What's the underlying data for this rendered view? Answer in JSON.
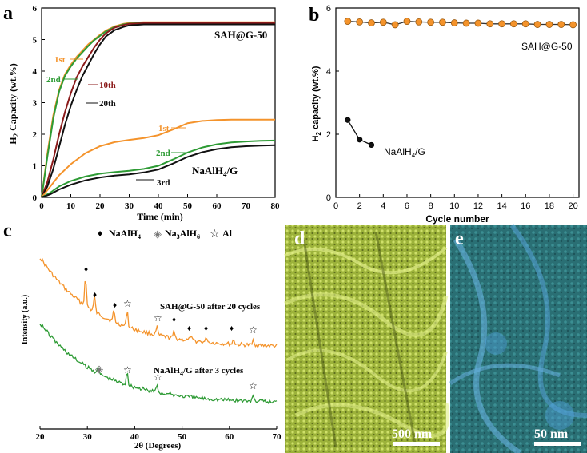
{
  "chart_data": [
    {
      "panel": "a",
      "type": "line",
      "xlabel": "Time (min)",
      "ylabel": "H2 Capacity (wt.%)",
      "xlim": [
        0,
        80
      ],
      "ylim": [
        0,
        6
      ],
      "xticks": [
        0,
        10,
        20,
        30,
        40,
        50,
        60,
        70,
        80
      ],
      "yticks": [
        0,
        1,
        2,
        3,
        4,
        5,
        6
      ],
      "series": [
        {
          "name": "SAH@G-50 1st",
          "color": "#F4932B",
          "x": [
            0,
            2,
            4,
            6,
            8,
            10,
            12,
            14,
            16,
            18,
            20,
            22,
            25,
            28,
            30,
            35,
            40,
            50,
            60,
            70,
            80
          ],
          "y": [
            0,
            1.4,
            2.6,
            3.4,
            3.9,
            4.2,
            4.45,
            4.65,
            4.85,
            5.0,
            5.15,
            5.28,
            5.42,
            5.5,
            5.53,
            5.55,
            5.55,
            5.55,
            5.55,
            5.55,
            5.55
          ]
        },
        {
          "name": "SAH@G-50 2nd",
          "color": "#2E9B35",
          "x": [
            0,
            2,
            4,
            6,
            8,
            10,
            12,
            14,
            16,
            18,
            20,
            22,
            25,
            28,
            30,
            35,
            40,
            50,
            60,
            70,
            80
          ],
          "y": [
            0,
            1.3,
            2.5,
            3.35,
            3.85,
            4.15,
            4.4,
            4.6,
            4.8,
            4.98,
            5.12,
            5.26,
            5.4,
            5.48,
            5.51,
            5.53,
            5.53,
            5.53,
            5.53,
            5.53,
            5.53
          ]
        },
        {
          "name": "SAH@G-50 10th",
          "color": "#8B1A1A",
          "x": [
            0,
            2,
            4,
            6,
            8,
            10,
            12,
            14,
            16,
            18,
            20,
            22,
            25,
            28,
            30,
            35,
            40,
            50,
            60,
            70,
            80
          ],
          "y": [
            0,
            0.5,
            1.2,
            2.0,
            2.7,
            3.3,
            3.8,
            4.15,
            4.45,
            4.75,
            5.0,
            5.2,
            5.38,
            5.46,
            5.5,
            5.52,
            5.52,
            5.52,
            5.52,
            5.52,
            5.52
          ]
        },
        {
          "name": "SAH@G-50 20th",
          "color": "#111111",
          "x": [
            0,
            2,
            4,
            6,
            8,
            10,
            12,
            14,
            16,
            18,
            20,
            22,
            25,
            28,
            30,
            35,
            40,
            50,
            60,
            70,
            80
          ],
          "y": [
            0,
            0.35,
            0.9,
            1.6,
            2.3,
            2.9,
            3.4,
            3.85,
            4.2,
            4.55,
            4.85,
            5.1,
            5.3,
            5.4,
            5.45,
            5.48,
            5.48,
            5.48,
            5.48,
            5.48,
            5.48
          ]
        },
        {
          "name": "NaAlH4/G 1st",
          "color": "#F4932B",
          "x": [
            0,
            3,
            6,
            10,
            15,
            20,
            25,
            30,
            35,
            40,
            45,
            50,
            55,
            60,
            65,
            70,
            75,
            80
          ],
          "y": [
            0,
            0.35,
            0.7,
            1.05,
            1.4,
            1.62,
            1.75,
            1.82,
            1.88,
            1.97,
            2.15,
            2.35,
            2.42,
            2.45,
            2.46,
            2.46,
            2.46,
            2.46
          ]
        },
        {
          "name": "NaAlH4/G 2nd",
          "color": "#2E9B35",
          "x": [
            0,
            3,
            6,
            10,
            15,
            20,
            25,
            30,
            35,
            40,
            45,
            50,
            55,
            60,
            65,
            70,
            75,
            80
          ],
          "y": [
            0,
            0.15,
            0.35,
            0.52,
            0.66,
            0.75,
            0.8,
            0.84,
            0.9,
            1.0,
            1.2,
            1.42,
            1.58,
            1.68,
            1.74,
            1.77,
            1.79,
            1.8
          ]
        },
        {
          "name": "NaAlH4/G 3rd",
          "color": "#111111",
          "x": [
            0,
            3,
            6,
            10,
            15,
            20,
            25,
            30,
            35,
            40,
            45,
            50,
            55,
            60,
            65,
            70,
            75,
            80
          ],
          "y": [
            0,
            0.1,
            0.25,
            0.4,
            0.54,
            0.63,
            0.69,
            0.73,
            0.79,
            0.88,
            1.07,
            1.28,
            1.43,
            1.53,
            1.59,
            1.62,
            1.64,
            1.65
          ]
        }
      ],
      "labels": {
        "sah": "SAH@G-50",
        "nah_main": "NaAlH",
        "nah_sub": "4",
        "nah_tail": "/G",
        "c1": "1st",
        "c2": "2nd",
        "c10": "10th",
        "c20": "20th",
        "n1": "1st",
        "n2": "2nd",
        "n3": "3rd"
      }
    },
    {
      "panel": "b",
      "type": "line",
      "xlabel": "Cycle number",
      "ylabel": "H2 capacity (wt.%)",
      "xlim": [
        0,
        20.5
      ],
      "ylim": [
        0,
        6
      ],
      "xticks": [
        0,
        2,
        4,
        6,
        8,
        10,
        12,
        14,
        16,
        18,
        20
      ],
      "yticks": [
        0,
        2,
        4,
        6
      ],
      "series": [
        {
          "name": "SAH@G-50",
          "color": "#F4932B",
          "x": [
            1,
            2,
            3,
            4,
            5,
            6,
            7,
            8,
            9,
            10,
            11,
            12,
            13,
            14,
            15,
            16,
            17,
            18,
            19,
            20
          ],
          "y": [
            5.58,
            5.56,
            5.53,
            5.55,
            5.47,
            5.58,
            5.56,
            5.55,
            5.55,
            5.53,
            5.52,
            5.52,
            5.5,
            5.5,
            5.5,
            5.5,
            5.48,
            5.48,
            5.48,
            5.47
          ]
        },
        {
          "name": "NaAlH4/G",
          "color": "#111111",
          "x": [
            1,
            2,
            3
          ],
          "y": [
            2.45,
            1.83,
            1.66
          ]
        }
      ],
      "labels": {
        "sah": "SAH@G-50",
        "nah_main": "NaAlH",
        "nah_sub": "4",
        "nah_tail": "/G"
      }
    },
    {
      "panel": "c",
      "type": "line",
      "xlabel": "2θ (Degrees)",
      "ylabel": "Intensity (a.u.)",
      "xlim": [
        20,
        70
      ],
      "xticks": [
        20,
        30,
        40,
        50,
        60,
        70
      ],
      "legend": {
        "naalh4_main": "NaAlH",
        "naalh4_sub": "4",
        "na3_main": "Na",
        "na3_sub1": "3",
        "na3_mid": "AlH",
        "na3_sub2": "6",
        "al": "Al",
        "diamond": "♦",
        "gray_diamond": "◈",
        "star": "☆"
      },
      "traces": [
        {
          "name": "SAH@G-50 after 20 cycles",
          "color": "#F4932B",
          "offset": 0.85
        },
        {
          "name": "NaAlH4/G after 3 cycles",
          "color": "#2E9B35",
          "offset": 0.0
        }
      ],
      "trace_labels": {
        "sah": "SAH@G-50 after 20 cycles",
        "nah_main": "NaAlH",
        "nah_sub": "4",
        "nah_tail": "/G after 3 cycles"
      },
      "peaks_orange": [
        29.6,
        31.5,
        35.6,
        38.4,
        44.7,
        48.3,
        51.8,
        55.2,
        60.9,
        65.1
      ],
      "peaks_green": [
        32.2,
        38.4,
        44.7,
        65.1
      ]
    }
  ],
  "panels": {
    "a": "a",
    "b": "b",
    "c": "c",
    "d": "d",
    "e": "e",
    "scale_d": "500 nm",
    "scale_e": "50 nm"
  }
}
